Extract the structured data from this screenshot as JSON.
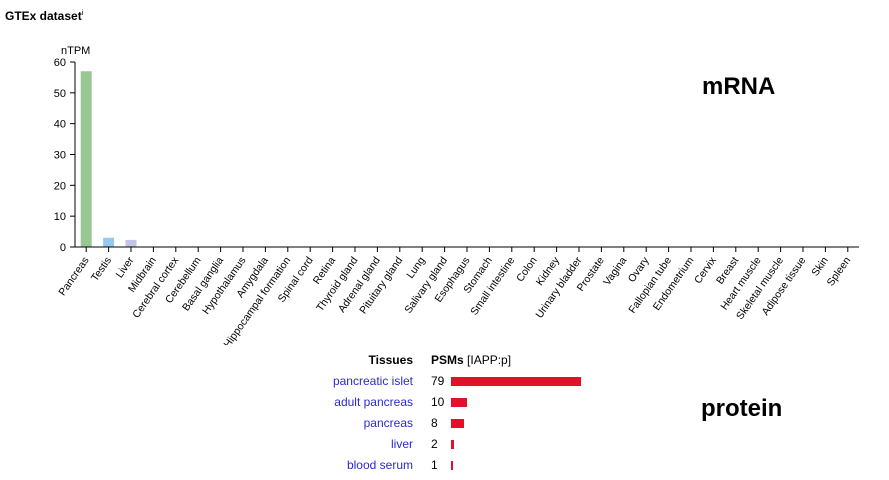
{
  "header": {
    "title": "GTEx dataset",
    "info_mark": "i"
  },
  "labels": {
    "mrna": "mRNA",
    "protein": "protein"
  },
  "chart_data": {
    "type": "bar",
    "ylabel": "nTPM",
    "ylim": [
      0,
      60
    ],
    "yticks": [
      0,
      10,
      20,
      30,
      40,
      50,
      60
    ],
    "categories": [
      "Pancreas",
      "Testis",
      "Liver",
      "Midbrain",
      "Cerebral cortex",
      "Cerebellum",
      "Basal ganglia",
      "Hypothalamus",
      "Amygdala",
      "Hippocampal formation",
      "Spinal cord",
      "Retina",
      "Thyroid gland",
      "Adrenal gland",
      "Pituitary gland",
      "Lung",
      "Salivary gland",
      "Esophagus",
      "Stomach",
      "Small intestine",
      "Colon",
      "Kidney",
      "Urinary bladder",
      "Prostate",
      "Vagina",
      "Ovary",
      "Fallopian tube",
      "Endometrium",
      "Cervix",
      "Breast",
      "Heart muscle",
      "Skeletal muscle",
      "Adipose tissue",
      "Skin",
      "Spleen"
    ],
    "values": [
      57,
      3,
      2.3,
      0,
      0,
      0,
      0,
      0,
      0,
      0,
      0,
      0,
      0,
      0,
      0,
      0,
      0,
      0,
      0,
      0,
      0,
      0,
      0,
      0,
      0,
      0,
      0,
      0,
      0,
      0,
      0,
      0,
      0,
      0,
      0
    ],
    "colors": [
      "#99c793",
      "#96c8f0",
      "#c3c5e6",
      "#eeeeee",
      "#eeeeee",
      "#eeeeee",
      "#eeeeee",
      "#eeeeee",
      "#eeeeee",
      "#eeeeee",
      "#eeeeee",
      "#eeeeee",
      "#eeeeee",
      "#eeeeee",
      "#eeeeee",
      "#eeeeee",
      "#eeeeee",
      "#eeeeee",
      "#eeeeee",
      "#eeeeee",
      "#eeeeee",
      "#eeeeee",
      "#eeeeee",
      "#eeeeee",
      "#eeeeee",
      "#eeeeee",
      "#eeeeee",
      "#eeeeee",
      "#eeeeee",
      "#eeeeee",
      "#eeeeee",
      "#eeeeee",
      "#eeeeee",
      "#eeeeee",
      "#eeeeee"
    ]
  },
  "protein_table": {
    "header_tissues": "Tissues",
    "header_psms": "PSMs",
    "header_source": " [IAPP:p]",
    "bar_color": "#e4102a",
    "rows": [
      {
        "tissue": "pancreatic islet",
        "psms": 79
      },
      {
        "tissue": "adult pancreas",
        "psms": 10
      },
      {
        "tissue": "pancreas",
        "psms": 8
      },
      {
        "tissue": "liver",
        "psms": 2
      },
      {
        "tissue": "blood serum",
        "psms": 1
      }
    ]
  }
}
